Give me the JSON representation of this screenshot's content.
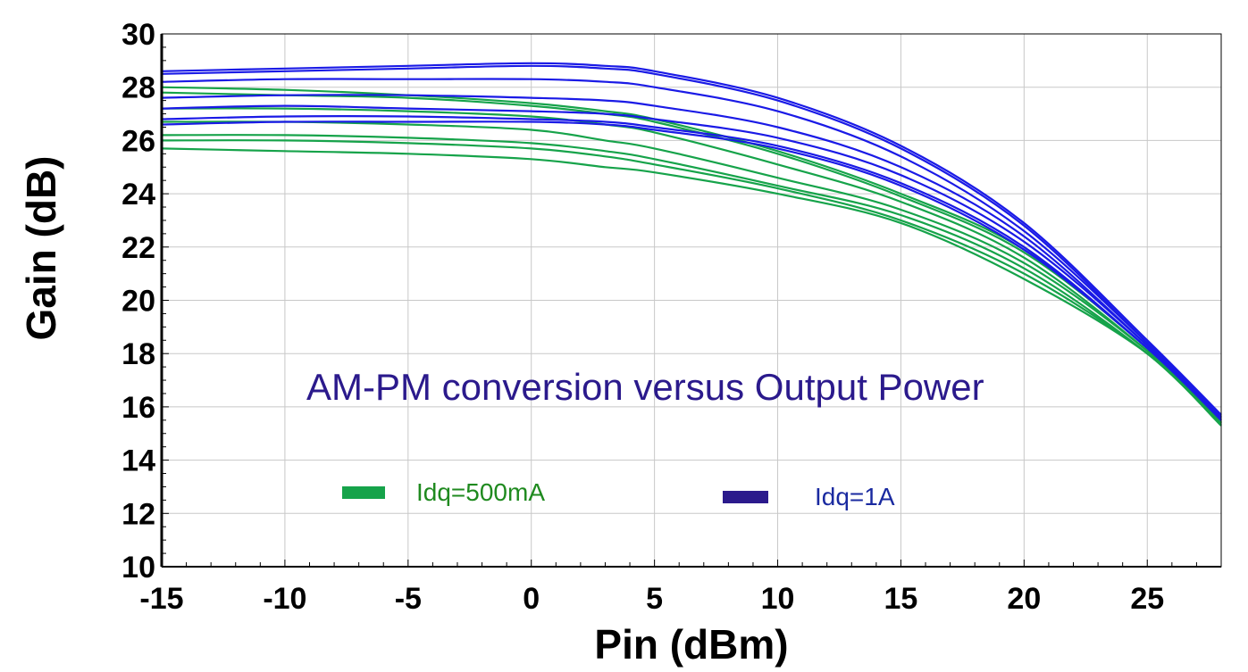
{
  "chart_data": {
    "type": "line",
    "title": "AM-PM conversion versus Output Power",
    "xlabel": "Pin (dBm)",
    "ylabel": "Gain (dB)",
    "xlim": [
      -15,
      28
    ],
    "ylim": [
      10,
      30
    ],
    "xticks": [
      -15,
      -10,
      -5,
      0,
      5,
      10,
      15,
      20,
      25
    ],
    "yticks": [
      10,
      12,
      14,
      16,
      18,
      20,
      22,
      24,
      26,
      28,
      30
    ],
    "x": [
      -15,
      -10,
      -5,
      0,
      3,
      5,
      10,
      15,
      20,
      25,
      28
    ],
    "grid": true,
    "colors": {
      "green": "#16a34a",
      "blue": "#1a1ae6",
      "title": "#2b1a8c",
      "legend_blue_swatch": "#2b1a8c",
      "legend_green_text": "#1f8a1f",
      "legend_blue_text": "#1a2aa0"
    },
    "legend": [
      {
        "label": "Idq=500mA",
        "color": "#16a34a"
      },
      {
        "label": "Idq=1A",
        "color": "#2b1a8c"
      }
    ],
    "series": [
      {
        "name": "Idq=500mA",
        "color": "#16a34a",
        "values": [
          28.0,
          27.9,
          27.7,
          27.4,
          27.1,
          26.8,
          25.6,
          24.0,
          21.9,
          18.2,
          15.4
        ]
      },
      {
        "name": "Idq=500mA",
        "color": "#16a34a",
        "values": [
          27.8,
          27.7,
          27.6,
          27.3,
          27.0,
          26.7,
          25.5,
          23.9,
          21.8,
          18.2,
          15.4
        ]
      },
      {
        "name": "Idq=500mA",
        "color": "#16a34a",
        "values": [
          27.2,
          27.2,
          27.1,
          26.9,
          26.6,
          26.3,
          25.1,
          23.7,
          21.6,
          18.1,
          15.4
        ]
      },
      {
        "name": "Idq=500mA",
        "color": "#16a34a",
        "values": [
          26.7,
          26.7,
          26.6,
          26.4,
          26.0,
          25.7,
          24.6,
          23.4,
          21.4,
          18.1,
          15.4
        ]
      },
      {
        "name": "Idq=500mA",
        "color": "#16a34a",
        "values": [
          26.2,
          26.2,
          26.1,
          25.9,
          25.6,
          25.3,
          24.3,
          23.2,
          21.2,
          18.0,
          15.3
        ]
      },
      {
        "name": "Idq=500mA",
        "color": "#16a34a",
        "values": [
          26.0,
          26.0,
          25.9,
          25.7,
          25.4,
          25.1,
          24.2,
          23.0,
          21.0,
          18.0,
          15.3
        ]
      },
      {
        "name": "Idq=500mA",
        "color": "#16a34a",
        "values": [
          25.7,
          25.6,
          25.5,
          25.3,
          25.0,
          24.8,
          24.0,
          22.9,
          20.8,
          18.0,
          15.3
        ]
      },
      {
        "name": "Idq=1A",
        "color": "#1a1ae6",
        "values": [
          28.6,
          28.7,
          28.8,
          28.9,
          28.8,
          28.6,
          27.6,
          25.8,
          22.9,
          18.5,
          15.7
        ]
      },
      {
        "name": "Idq=1A",
        "color": "#1a1ae6",
        "values": [
          28.5,
          28.6,
          28.7,
          28.8,
          28.7,
          28.5,
          27.5,
          25.7,
          22.8,
          18.4,
          15.6
        ]
      },
      {
        "name": "Idq=1A",
        "color": "#1a1ae6",
        "values": [
          28.2,
          28.3,
          28.3,
          28.3,
          28.2,
          28.0,
          27.1,
          25.4,
          22.6,
          18.4,
          15.6
        ]
      },
      {
        "name": "Idq=1A",
        "color": "#1a1ae6",
        "values": [
          27.6,
          27.7,
          27.7,
          27.6,
          27.5,
          27.3,
          26.5,
          25.0,
          22.4,
          18.3,
          15.6
        ]
      },
      {
        "name": "Idq=1A",
        "color": "#1a1ae6",
        "values": [
          27.2,
          27.3,
          27.2,
          27.1,
          27.0,
          26.8,
          26.1,
          24.7,
          22.2,
          18.3,
          15.5
        ]
      },
      {
        "name": "Idq=1A",
        "color": "#1a1ae6",
        "values": [
          26.8,
          26.9,
          26.9,
          26.8,
          26.7,
          26.5,
          25.8,
          24.4,
          22.0,
          18.2,
          15.5
        ]
      },
      {
        "name": "Idq=1A",
        "color": "#1a1ae6",
        "values": [
          26.6,
          26.7,
          26.7,
          26.7,
          26.6,
          26.4,
          25.7,
          24.3,
          21.9,
          18.2,
          15.5
        ]
      }
    ]
  }
}
